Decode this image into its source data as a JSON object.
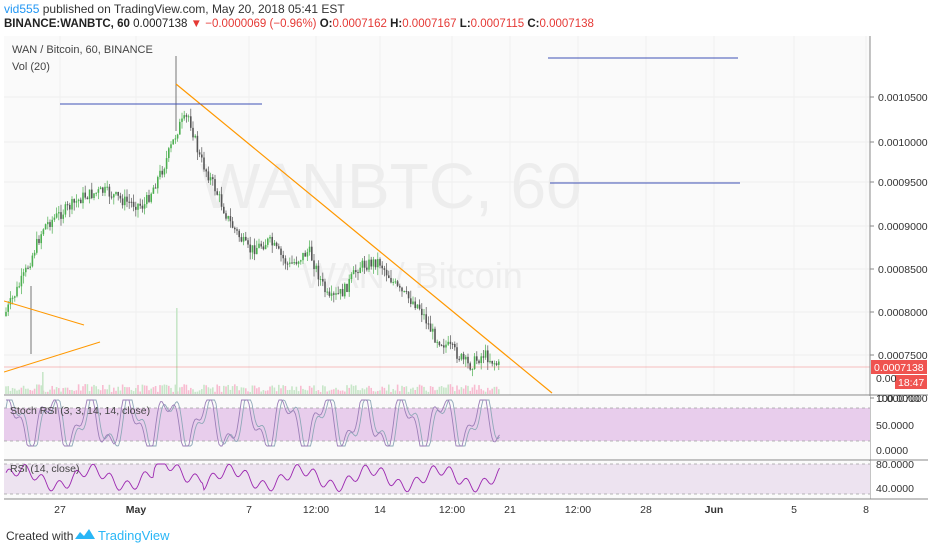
{
  "header": {
    "username": "vid555",
    "published_text": "published on TradingView.com, May 20, 2018 05:41 EST",
    "symbol_line": "BINANCE:WANBTC, 60",
    "last": "0.0007138",
    "change": "−0.0000069 (−0.96%)",
    "o_label": "O:",
    "o_value": "0.0007162",
    "h_label": "H:",
    "h_value": "0.0007167",
    "l_label": "L:",
    "l_value": "0.0007115",
    "c_label": "C:",
    "c_value": "0.0007138"
  },
  "pane_main": {
    "title": "WAN / Bitcoin, 60, BINANCE",
    "volume_label": "Vol (20)",
    "watermark_symbol": "WANBTC, 60",
    "watermark_name": "WAN / Bitcoin",
    "price_ticks": [
      "0.0010500",
      "0.0010000",
      "0.0009500",
      "0.0009000",
      "0.0008500",
      "0.0008000",
      "0.0007500",
      "0.0007000"
    ],
    "last_price": "0.0007138",
    "countdown": "18:47",
    "zero_label": "0.00"
  },
  "pane_stoch": {
    "title": "Stoch RSI (3, 3, 14, 14, close)",
    "ticks": [
      "100.0000",
      "50.0000",
      "0.0000"
    ]
  },
  "pane_rsi": {
    "title": "RSI (14, close)",
    "ticks": [
      "80.0000",
      "40.0000"
    ]
  },
  "time_axis": [
    "27",
    "May",
    "7",
    "12:00",
    "14",
    "12:00",
    "21",
    "12:00",
    "28",
    "12:00",
    "Jun",
    "5",
    "8"
  ],
  "footer": {
    "created_with": "Created with",
    "brand": "TradingView"
  },
  "colors": {
    "up": "#4caf50",
    "down": "#555555",
    "trend_orange": "#ff9800",
    "level_blue": "#3f51b5",
    "stoch_fill": "#e1bee7",
    "rsi_fill": "#ede3f0",
    "last_price": "#ef5350"
  },
  "chart_data": {
    "type": "candlestick",
    "symbol": "WANBTC",
    "interval": "60",
    "last_close": 0.0007138
  }
}
